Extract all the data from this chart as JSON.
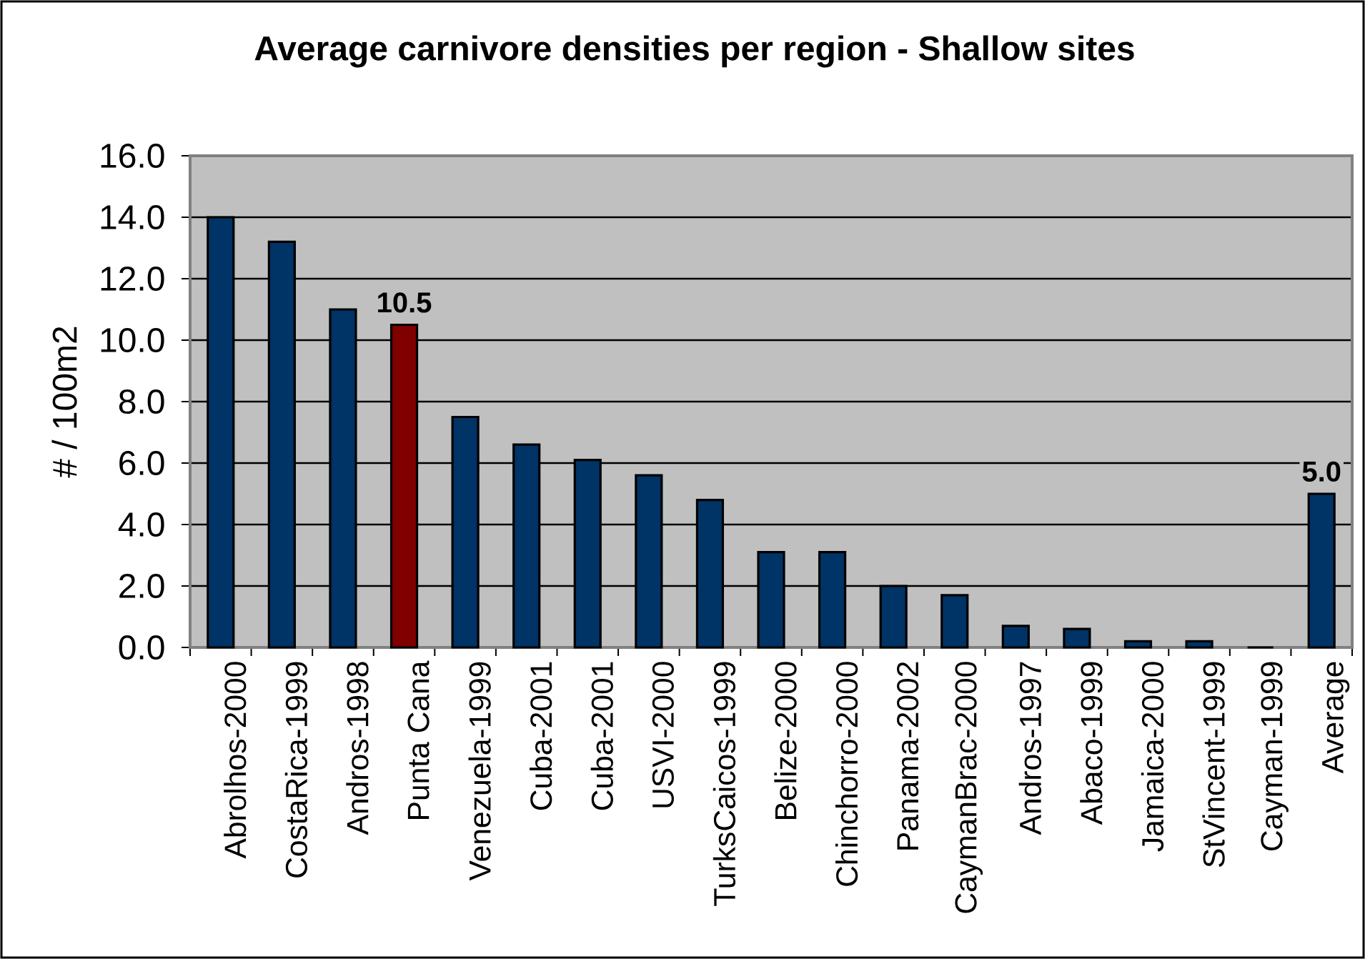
{
  "chart_data": {
    "type": "bar",
    "title": "Average carnivore densities per region - Shallow sites",
    "ylabel": "# / 100m2",
    "categories": [
      "Abrolhos-2000",
      "CostaRica-1999",
      "Andros-1998",
      "Punta Cana",
      "Venezuela-1999",
      "Cuba-2001",
      "Cuba-2001",
      "USVI-2000",
      "TurksCaicos-1999",
      "Belize-2000",
      "Chinchorro-2000",
      "Panama-2002",
      "CaymanBrac-2000",
      "Andros-1997",
      "Abaco-1999",
      "Jamaica-2000",
      "StVincent-1999",
      "Cayman-1999",
      "Average"
    ],
    "values": [
      14.0,
      13.2,
      11.0,
      10.5,
      7.5,
      6.6,
      6.1,
      5.6,
      4.8,
      3.1,
      3.1,
      2.0,
      1.7,
      0.7,
      0.6,
      0.2,
      0.2,
      0,
      5.0
    ],
    "colors": [
      "#003366",
      "#003366",
      "#003366",
      "#800000",
      "#003366",
      "#003366",
      "#003366",
      "#003366",
      "#003366",
      "#003366",
      "#003366",
      "#003366",
      "#003366",
      "#003366",
      "#003366",
      "#003366",
      "#003366",
      "#003366",
      "#003366"
    ],
    "value_labels": [
      null,
      null,
      null,
      "10.5",
      null,
      null,
      null,
      null,
      null,
      null,
      null,
      null,
      null,
      null,
      null,
      null,
      null,
      null,
      "5.0"
    ],
    "ylim": [
      0,
      16
    ],
    "yticks": [
      {
        "value": 0,
        "label": "0.0"
      },
      {
        "value": 2,
        "label": "2.0"
      },
      {
        "value": 4,
        "label": "4.0"
      },
      {
        "value": 6,
        "label": "6.0"
      },
      {
        "value": 8,
        "label": "8.0"
      },
      {
        "value": 10,
        "label": "10.0"
      },
      {
        "value": 12,
        "label": "12.0"
      },
      {
        "value": 14,
        "label": "14.0"
      },
      {
        "value": 16,
        "label": "16.0"
      }
    ],
    "grid": "y"
  }
}
